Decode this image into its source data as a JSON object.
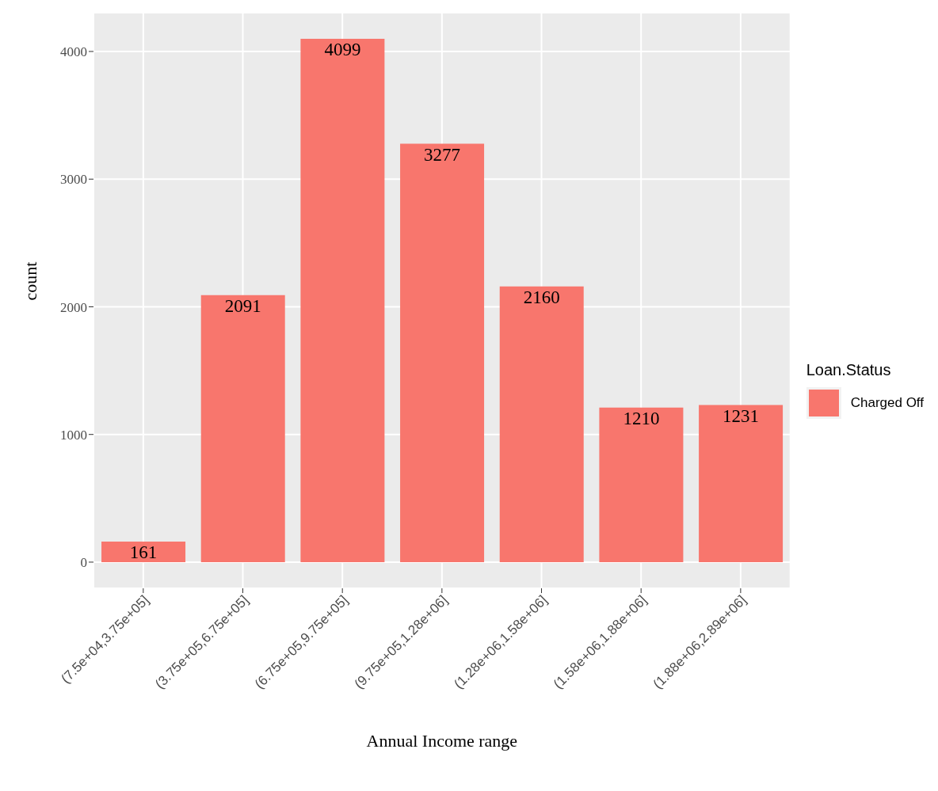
{
  "chart_data": {
    "type": "bar",
    "xlabel": "Annual Income range",
    "ylabel": "count",
    "legend_title": "Loan.Status",
    "categories": [
      "(7.5e+04,3.75e+05]",
      "(3.75e+05,6.75e+05]",
      "(6.75e+05,9.75e+05]",
      "(9.75e+05,1.28e+06]",
      "(1.28e+06,1.58e+06]",
      "(1.58e+06,1.88e+06]",
      "(1.88e+06,2.89e+06]"
    ],
    "series": [
      {
        "name": "Charged Off",
        "color": "#f8766d",
        "values": [
          161,
          2091,
          4099,
          3277,
          2160,
          1210,
          1231
        ]
      }
    ],
    "ylim": [
      -205,
      4304
    ],
    "yticks": [
      0,
      1000,
      2000,
      3000,
      4000
    ],
    "grid": true,
    "legend": "right",
    "data_labels": true
  }
}
